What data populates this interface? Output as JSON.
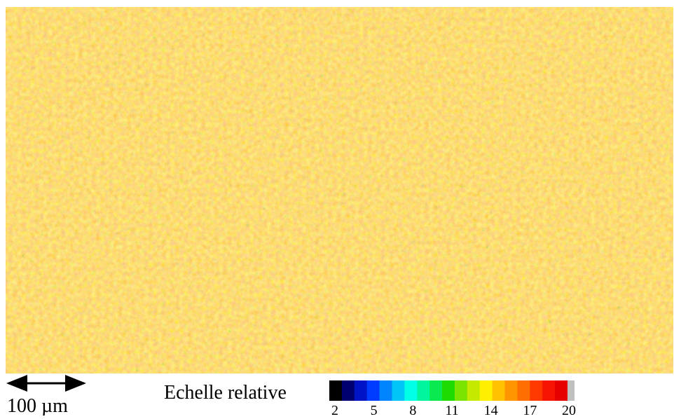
{
  "scale_bar": {
    "label": "100 µm"
  },
  "legend": {
    "title": "Echelle relative",
    "ticks": [
      2,
      5,
      8,
      11,
      14,
      17,
      20
    ]
  }
}
